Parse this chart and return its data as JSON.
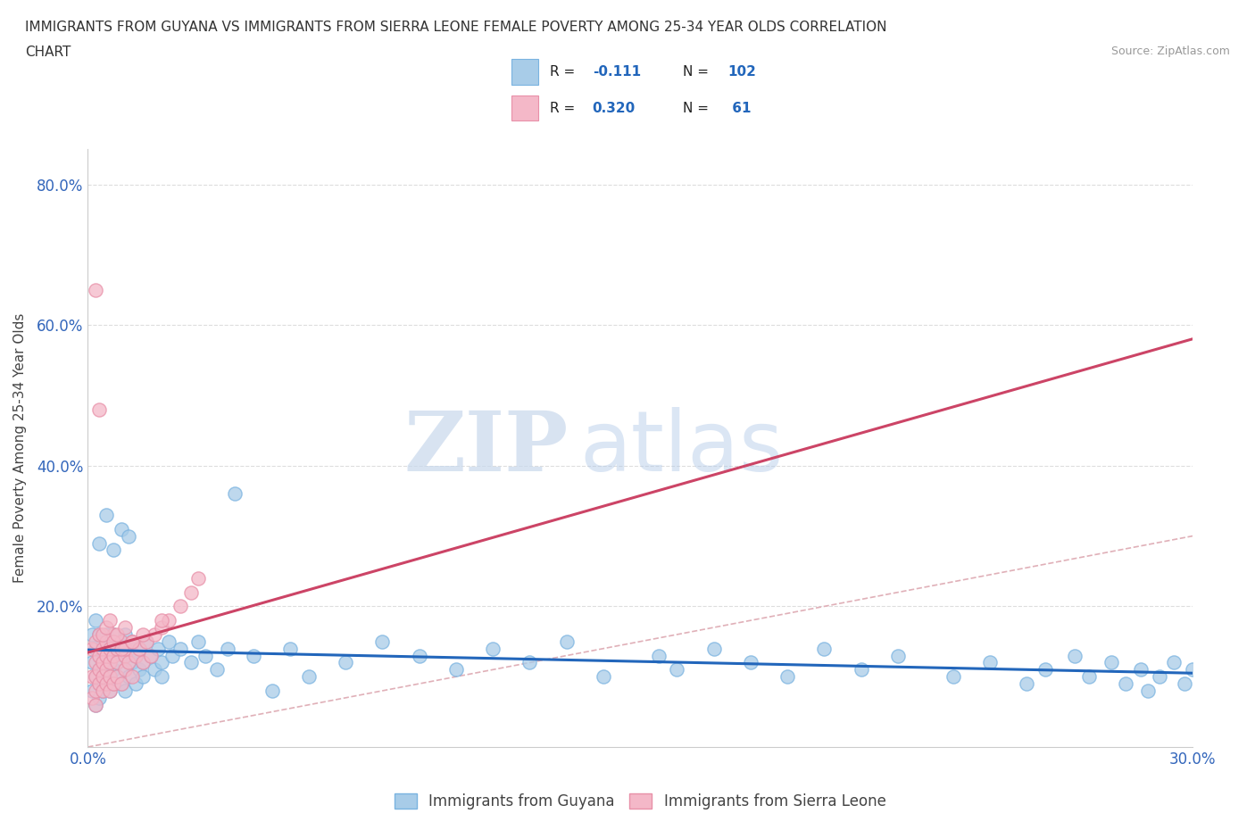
{
  "title_line1": "IMMIGRANTS FROM GUYANA VS IMMIGRANTS FROM SIERRA LEONE FEMALE POVERTY AMONG 25-34 YEAR OLDS CORRELATION",
  "title_line2": "CHART",
  "source": "Source: ZipAtlas.com",
  "ylabel": "Female Poverty Among 25-34 Year Olds",
  "xlim": [
    0.0,
    0.3
  ],
  "ylim": [
    0.0,
    0.85
  ],
  "xticks": [
    0.0,
    0.05,
    0.1,
    0.15,
    0.2,
    0.25,
    0.3
  ],
  "xticklabels": [
    "0.0%",
    "",
    "",
    "",
    "",
    "",
    "30.0%"
  ],
  "yticks": [
    0.0,
    0.2,
    0.4,
    0.6,
    0.8
  ],
  "yticklabels": [
    "",
    "20.0%",
    "40.0%",
    "60.0%",
    "80.0%"
  ],
  "guyana_color": "#a8cce8",
  "guyana_edge_color": "#7ab3e0",
  "sierra_leone_color": "#f4b8c8",
  "sierra_leone_edge_color": "#e890a8",
  "guyana_R": -0.111,
  "guyana_N": 102,
  "sierra_leone_R": 0.32,
  "sierra_leone_N": 61,
  "diagonal_color": "#e0b0b8",
  "watermark_ZIP": "ZIP",
  "watermark_atlas": "atlas",
  "guyana_trendline_color": "#2266bb",
  "sierra_leone_trendline_color": "#cc4466",
  "legend_R_color": "#2266bb",
  "guyana_x": [
    0.001,
    0.001,
    0.001,
    0.002,
    0.002,
    0.002,
    0.002,
    0.003,
    0.003,
    0.003,
    0.003,
    0.003,
    0.004,
    0.004,
    0.004,
    0.004,
    0.005,
    0.005,
    0.005,
    0.005,
    0.005,
    0.006,
    0.006,
    0.006,
    0.006,
    0.007,
    0.007,
    0.007,
    0.007,
    0.008,
    0.008,
    0.008,
    0.009,
    0.009,
    0.01,
    0.01,
    0.01,
    0.01,
    0.011,
    0.011,
    0.012,
    0.012,
    0.013,
    0.013,
    0.014,
    0.014,
    0.015,
    0.015,
    0.016,
    0.017,
    0.018,
    0.019,
    0.02,
    0.02,
    0.022,
    0.023,
    0.025,
    0.028,
    0.03,
    0.032,
    0.035,
    0.038,
    0.04,
    0.045,
    0.05,
    0.055,
    0.06,
    0.07,
    0.08,
    0.09,
    0.1,
    0.11,
    0.12,
    0.13,
    0.14,
    0.155,
    0.16,
    0.17,
    0.18,
    0.19,
    0.2,
    0.21,
    0.22,
    0.235,
    0.245,
    0.255,
    0.26,
    0.268,
    0.272,
    0.278,
    0.282,
    0.286,
    0.288,
    0.291,
    0.295,
    0.298,
    0.3,
    0.003,
    0.005,
    0.007,
    0.009,
    0.011
  ],
  "guyana_y": [
    0.12,
    0.08,
    0.16,
    0.1,
    0.14,
    0.18,
    0.06,
    0.13,
    0.09,
    0.16,
    0.11,
    0.07,
    0.15,
    0.1,
    0.12,
    0.08,
    0.14,
    0.09,
    0.16,
    0.11,
    0.13,
    0.15,
    0.1,
    0.12,
    0.08,
    0.13,
    0.09,
    0.16,
    0.11,
    0.14,
    0.1,
    0.12,
    0.15,
    0.09,
    0.13,
    0.11,
    0.08,
    0.16,
    0.14,
    0.1,
    0.12,
    0.15,
    0.13,
    0.09,
    0.11,
    0.14,
    0.12,
    0.1,
    0.15,
    0.13,
    0.11,
    0.14,
    0.12,
    0.1,
    0.15,
    0.13,
    0.14,
    0.12,
    0.15,
    0.13,
    0.11,
    0.14,
    0.36,
    0.13,
    0.08,
    0.14,
    0.1,
    0.12,
    0.15,
    0.13,
    0.11,
    0.14,
    0.12,
    0.15,
    0.1,
    0.13,
    0.11,
    0.14,
    0.12,
    0.1,
    0.14,
    0.11,
    0.13,
    0.1,
    0.12,
    0.09,
    0.11,
    0.13,
    0.1,
    0.12,
    0.09,
    0.11,
    0.08,
    0.1,
    0.12,
    0.09,
    0.11,
    0.29,
    0.33,
    0.28,
    0.31,
    0.3
  ],
  "sierra_leone_x": [
    0.001,
    0.001,
    0.001,
    0.002,
    0.002,
    0.002,
    0.002,
    0.002,
    0.003,
    0.003,
    0.003,
    0.003,
    0.004,
    0.004,
    0.004,
    0.004,
    0.005,
    0.005,
    0.005,
    0.005,
    0.006,
    0.006,
    0.006,
    0.006,
    0.007,
    0.007,
    0.007,
    0.008,
    0.008,
    0.008,
    0.009,
    0.009,
    0.01,
    0.01,
    0.01,
    0.011,
    0.012,
    0.012,
    0.013,
    0.014,
    0.015,
    0.016,
    0.017,
    0.018,
    0.02,
    0.022,
    0.025,
    0.028,
    0.03,
    0.002,
    0.003,
    0.004,
    0.005,
    0.006,
    0.007,
    0.008,
    0.009,
    0.01,
    0.012,
    0.015,
    0.02
  ],
  "sierra_leone_y": [
    0.1,
    0.14,
    0.07,
    0.12,
    0.08,
    0.15,
    0.1,
    0.06,
    0.13,
    0.09,
    0.16,
    0.11,
    0.14,
    0.1,
    0.12,
    0.08,
    0.15,
    0.11,
    0.13,
    0.09,
    0.14,
    0.1,
    0.12,
    0.08,
    0.13,
    0.09,
    0.16,
    0.14,
    0.1,
    0.12,
    0.15,
    0.09,
    0.13,
    0.11,
    0.14,
    0.12,
    0.15,
    0.1,
    0.13,
    0.14,
    0.12,
    0.15,
    0.13,
    0.16,
    0.17,
    0.18,
    0.2,
    0.22,
    0.24,
    0.65,
    0.48,
    0.16,
    0.17,
    0.18,
    0.15,
    0.16,
    0.14,
    0.17,
    0.15,
    0.16,
    0.18
  ]
}
